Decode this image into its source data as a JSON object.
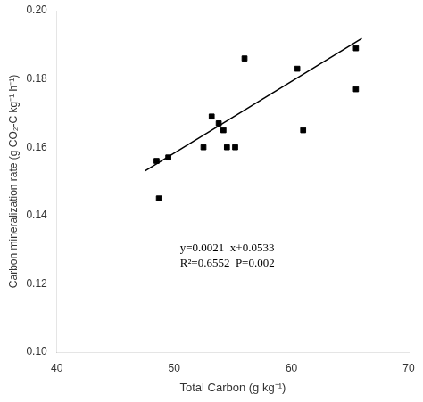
{
  "chart_data": {
    "type": "scatter",
    "xlabel": "Total Carbon (g kg⁻¹)",
    "ylabel": "Carbon mineralization rate (g CO₂-C kg⁻¹ h⁻¹)",
    "annotations": [
      "y=0.0021  x+0.0533",
      "R²=0.6552  P=0.002"
    ],
    "series": [
      {
        "type": "scatter",
        "color": "black",
        "marker": "square",
        "x": [
          48.5,
          48.7,
          49.5,
          52.5,
          53.2,
          53.8,
          54.2,
          54.5,
          55.2,
          56.0,
          60.5,
          61.0,
          65.5,
          65.5
        ],
        "values": [
          0.156,
          0.145,
          0.157,
          0.16,
          0.169,
          0.167,
          0.165,
          0.16,
          0.16,
          0.186,
          0.183,
          0.165,
          0.189,
          0.177
        ]
      },
      {
        "type": "line",
        "color": "black",
        "line_style": "solid",
        "x": [
          47.5,
          66.0
        ],
        "values": [
          0.15305,
          0.1919
        ]
      }
    ],
    "xlim": [
      40,
      70
    ],
    "xticks": [
      40,
      50,
      60,
      70
    ],
    "ylim": [
      0.1,
      0.2
    ],
    "yticks": [
      {
        "value": 0.1,
        "label": "0.10"
      },
      0.12,
      0.14,
      0.16,
      0.18,
      {
        "value": 0.2,
        "label": "0.20"
      }
    ],
    "grid": false
  }
}
